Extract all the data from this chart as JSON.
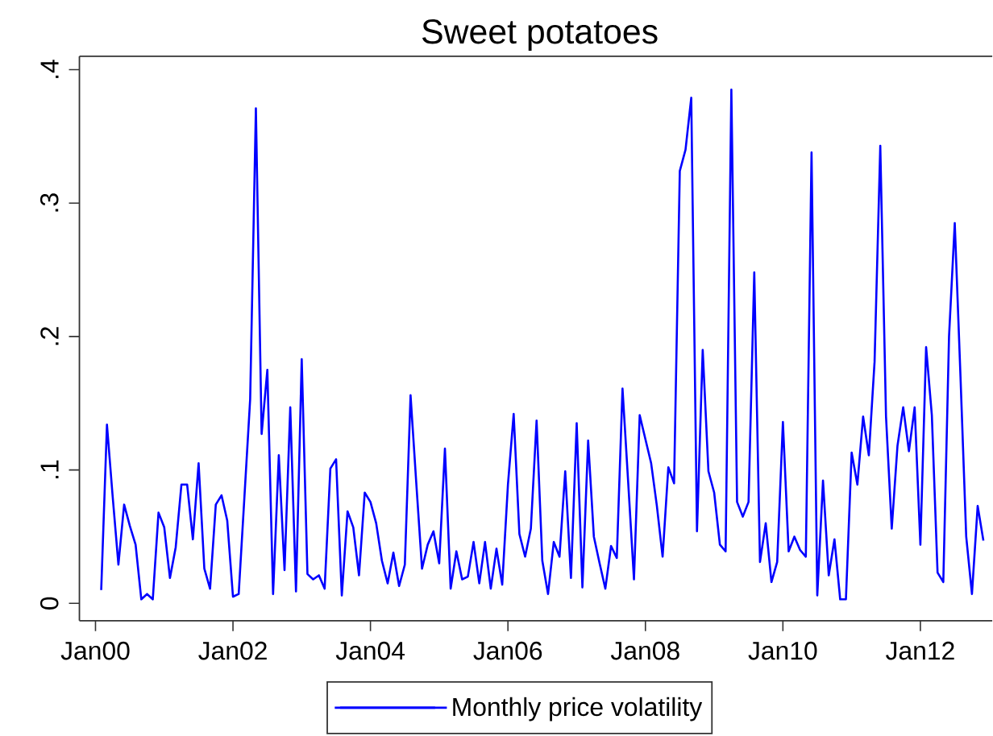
{
  "chart_data": {
    "type": "line",
    "title": "Sweet potatoes",
    "x": [
      "2000-02",
      "2000-03",
      "2000-04",
      "2000-05",
      "2000-06",
      "2000-07",
      "2000-08",
      "2000-09",
      "2000-10",
      "2000-11",
      "2000-12",
      "2001-01",
      "2001-02",
      "2001-03",
      "2001-04",
      "2001-05",
      "2001-06",
      "2001-07",
      "2001-08",
      "2001-09",
      "2001-10",
      "2001-11",
      "2001-12",
      "2002-01",
      "2002-02",
      "2002-03",
      "2002-04",
      "2002-05",
      "2002-06",
      "2002-07",
      "2002-08",
      "2002-09",
      "2002-10",
      "2002-11",
      "2002-12",
      "2003-01",
      "2003-02",
      "2003-03",
      "2003-04",
      "2003-05",
      "2003-06",
      "2003-07",
      "2003-08",
      "2003-09",
      "2003-10",
      "2003-11",
      "2003-12",
      "2004-01",
      "2004-02",
      "2004-03",
      "2004-04",
      "2004-05",
      "2004-06",
      "2004-07",
      "2004-08",
      "2004-09",
      "2004-10",
      "2004-11",
      "2004-12",
      "2005-01",
      "2005-02",
      "2005-03",
      "2005-04",
      "2005-05",
      "2005-06",
      "2005-07",
      "2005-08",
      "2005-09",
      "2005-10",
      "2005-11",
      "2005-12",
      "2006-01",
      "2006-02",
      "2006-03",
      "2006-04",
      "2006-05",
      "2006-06",
      "2006-07",
      "2006-08",
      "2006-09",
      "2006-10",
      "2006-11",
      "2006-12",
      "2007-01",
      "2007-02",
      "2007-03",
      "2007-04",
      "2007-05",
      "2007-06",
      "2007-07",
      "2007-08",
      "2007-09",
      "2007-10",
      "2007-11",
      "2007-12",
      "2008-01",
      "2008-02",
      "2008-03",
      "2008-04",
      "2008-05",
      "2008-06",
      "2008-07",
      "2008-08",
      "2008-09",
      "2008-10",
      "2008-11",
      "2008-12",
      "2009-01",
      "2009-02",
      "2009-03",
      "2009-04",
      "2009-05",
      "2009-06",
      "2009-07",
      "2009-08",
      "2009-09",
      "2009-10",
      "2009-11",
      "2009-12",
      "2010-01",
      "2010-02",
      "2010-03",
      "2010-04",
      "2010-05",
      "2010-06",
      "2010-07",
      "2010-08",
      "2010-09",
      "2010-10",
      "2010-11",
      "2010-12",
      "2011-01",
      "2011-02",
      "2011-03",
      "2011-04",
      "2011-05",
      "2011-06",
      "2011-07",
      "2011-08",
      "2011-09",
      "2011-10",
      "2011-11",
      "2011-12",
      "2012-01",
      "2012-02",
      "2012-03",
      "2012-04",
      "2012-05",
      "2012-06",
      "2012-07",
      "2012-08",
      "2012-09",
      "2012-10",
      "2012-11",
      "2012-12"
    ],
    "series": [
      {
        "name": "Monthly price volatility",
        "color": "#0000ff",
        "values": [
          0.01,
          0.134,
          0.08,
          0.029,
          0.074,
          0.058,
          0.044,
          0.003,
          0.007,
          0.003,
          0.068,
          0.057,
          0.019,
          0.042,
          0.089,
          0.089,
          0.048,
          0.105,
          0.026,
          0.011,
          0.074,
          0.081,
          0.062,
          0.005,
          0.007,
          0.08,
          0.153,
          0.371,
          0.127,
          0.175,
          0.007,
          0.111,
          0.025,
          0.147,
          0.009,
          0.183,
          0.022,
          0.018,
          0.021,
          0.011,
          0.101,
          0.108,
          0.006,
          0.069,
          0.057,
          0.021,
          0.083,
          0.076,
          0.06,
          0.032,
          0.015,
          0.038,
          0.013,
          0.029,
          0.156,
          0.09,
          0.026,
          0.044,
          0.054,
          0.03,
          0.116,
          0.011,
          0.039,
          0.018,
          0.02,
          0.046,
          0.015,
          0.046,
          0.011,
          0.041,
          0.014,
          0.089,
          0.142,
          0.052,
          0.035,
          0.056,
          0.137,
          0.032,
          0.007,
          0.046,
          0.035,
          0.099,
          0.019,
          0.135,
          0.012,
          0.122,
          0.05,
          0.03,
          0.011,
          0.043,
          0.034,
          0.161,
          0.09,
          0.018,
          0.141,
          0.123,
          0.105,
          0.073,
          0.035,
          0.102,
          0.09,
          0.324,
          0.34,
          0.379,
          0.054,
          0.19,
          0.099,
          0.083,
          0.044,
          0.039,
          0.385,
          0.076,
          0.065,
          0.076,
          0.248,
          0.031,
          0.06,
          0.016,
          0.031,
          0.136,
          0.039,
          0.05,
          0.04,
          0.035,
          0.338,
          0.006,
          0.092,
          0.021,
          0.048,
          0.003,
          0.003,
          0.113,
          0.089,
          0.14,
          0.111,
          0.181,
          0.343,
          0.14,
          0.056,
          0.118,
          0.147,
          0.114,
          0.147,
          0.044,
          0.192,
          0.141,
          0.023,
          0.016,
          0.2,
          0.285,
          0.17,
          0.05,
          0.007,
          0.073,
          0.047
        ]
      }
    ],
    "xlim": [
      "1999-10-07",
      "2013-01-18"
    ],
    "ylim": [
      -0.013,
      0.41
    ],
    "xticks": [
      {
        "value": "2000-01",
        "label": "Jan00"
      },
      {
        "value": "2002-01",
        "label": "Jan02"
      },
      {
        "value": "2004-01",
        "label": "Jan04"
      },
      {
        "value": "2006-01",
        "label": "Jan06"
      },
      {
        "value": "2008-01",
        "label": "Jan08"
      },
      {
        "value": "2010-01",
        "label": "Jan10"
      },
      {
        "value": "2012-01",
        "label": "Jan12"
      }
    ],
    "yticks": [
      0,
      {
        "value": 0.1,
        "label": ".1"
      },
      {
        "value": 0.2,
        "label": ".2"
      },
      {
        "value": 0.3,
        "label": ".3"
      },
      {
        "value": 0.4,
        "label": ".4"
      }
    ],
    "legend": "bottom"
  }
}
